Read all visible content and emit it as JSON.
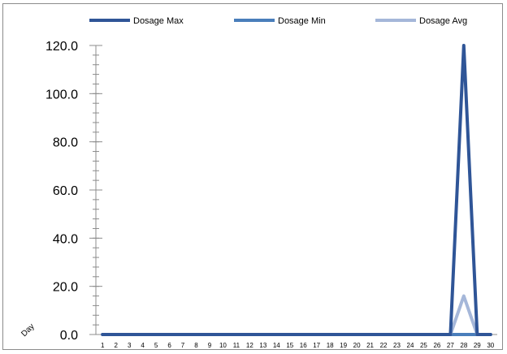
{
  "chart_data": {
    "type": "line",
    "xlabel": "Day",
    "ylabel": "",
    "ylim": [
      0,
      120
    ],
    "y_ticks": [
      "0.0",
      "20.0",
      "40.0",
      "60.0",
      "80.0",
      "100.0",
      "120.0"
    ],
    "x": [
      1,
      2,
      3,
      4,
      5,
      6,
      7,
      8,
      9,
      10,
      11,
      12,
      13,
      14,
      15,
      16,
      17,
      18,
      19,
      20,
      21,
      22,
      23,
      24,
      25,
      26,
      27,
      28,
      29,
      30
    ],
    "x_tick_labels": [
      "1",
      "2",
      "3",
      "4",
      "5",
      "6",
      "7",
      "8",
      "9",
      "10",
      "11",
      "12",
      "13",
      "14",
      "15",
      "16",
      "17",
      "18",
      "19",
      "20",
      "21",
      "22",
      "23",
      "24",
      "25",
      "26",
      "27",
      "28",
      "29",
      "30"
    ],
    "legend_position": "top",
    "grid": false,
    "series": [
      {
        "name": "Dosage Max",
        "color": "#2f5597",
        "width": 4,
        "values": [
          0,
          0,
          0,
          0,
          0,
          0,
          0,
          0,
          0,
          0,
          0,
          0,
          0,
          0,
          0,
          0,
          0,
          0,
          0,
          0,
          0,
          0,
          0,
          0,
          0,
          0,
          0,
          120,
          0,
          0
        ]
      },
      {
        "name": "Dosage Min",
        "color": "#4a7ebb",
        "width": 4,
        "values": [
          0,
          0,
          0,
          0,
          0,
          0,
          0,
          0,
          0,
          0,
          0,
          0,
          0,
          0,
          0,
          0,
          0,
          0,
          0,
          0,
          0,
          0,
          0,
          0,
          0,
          0,
          0,
          0,
          0,
          0
        ]
      },
      {
        "name": "Dosage Avg",
        "color": "#a5b7d9",
        "width": 4,
        "values": [
          0,
          0,
          0,
          0,
          0,
          0,
          0,
          0,
          0,
          0,
          0,
          0,
          0,
          0,
          0,
          0,
          0,
          0,
          0,
          0,
          0,
          0,
          0,
          0,
          0,
          0,
          0,
          16,
          0,
          0
        ]
      }
    ]
  }
}
